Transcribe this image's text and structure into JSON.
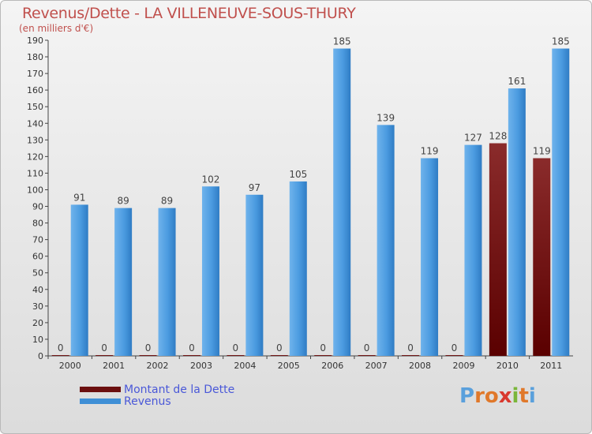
{
  "title": "Revenus/Dette - LA VILLENEUVE-SOUS-THURY",
  "subtitle": "(en milliers d'€)",
  "logo": {
    "text": "Proxiti",
    "letters": [
      "P",
      "r",
      "o",
      "x",
      "i",
      "t",
      "i"
    ],
    "colors": [
      "#5aa0dc",
      "#e0782a",
      "#e0782a",
      "#d9392e",
      "#7ab63a",
      "#e0782a",
      "#5aa0dc"
    ]
  },
  "colors": {
    "dette": "#6b0f0f",
    "revenus": "#3f8fd6",
    "title": "#c0504d",
    "axis": "#555555"
  },
  "chart_data": {
    "type": "bar",
    "categories": [
      "2000",
      "2001",
      "2002",
      "2003",
      "2004",
      "2005",
      "2006",
      "2007",
      "2008",
      "2009",
      "2010",
      "2011"
    ],
    "series": [
      {
        "name": "Montant de la Dette",
        "values": [
          0,
          0,
          0,
          0,
          0,
          0,
          0,
          0,
          0,
          0,
          128,
          119
        ],
        "color": "#6b0f0f"
      },
      {
        "name": "Revenus",
        "values": [
          91,
          89,
          89,
          102,
          97,
          105,
          185,
          139,
          119,
          127,
          161,
          185
        ],
        "color": "#3f8fd6"
      }
    ],
    "ylim": [
      0,
      190
    ],
    "yticks": [
      0,
      10,
      20,
      30,
      40,
      50,
      60,
      70,
      80,
      90,
      100,
      110,
      120,
      130,
      140,
      150,
      160,
      170,
      180,
      190
    ],
    "grid": false,
    "legend": "bottom-left"
  }
}
